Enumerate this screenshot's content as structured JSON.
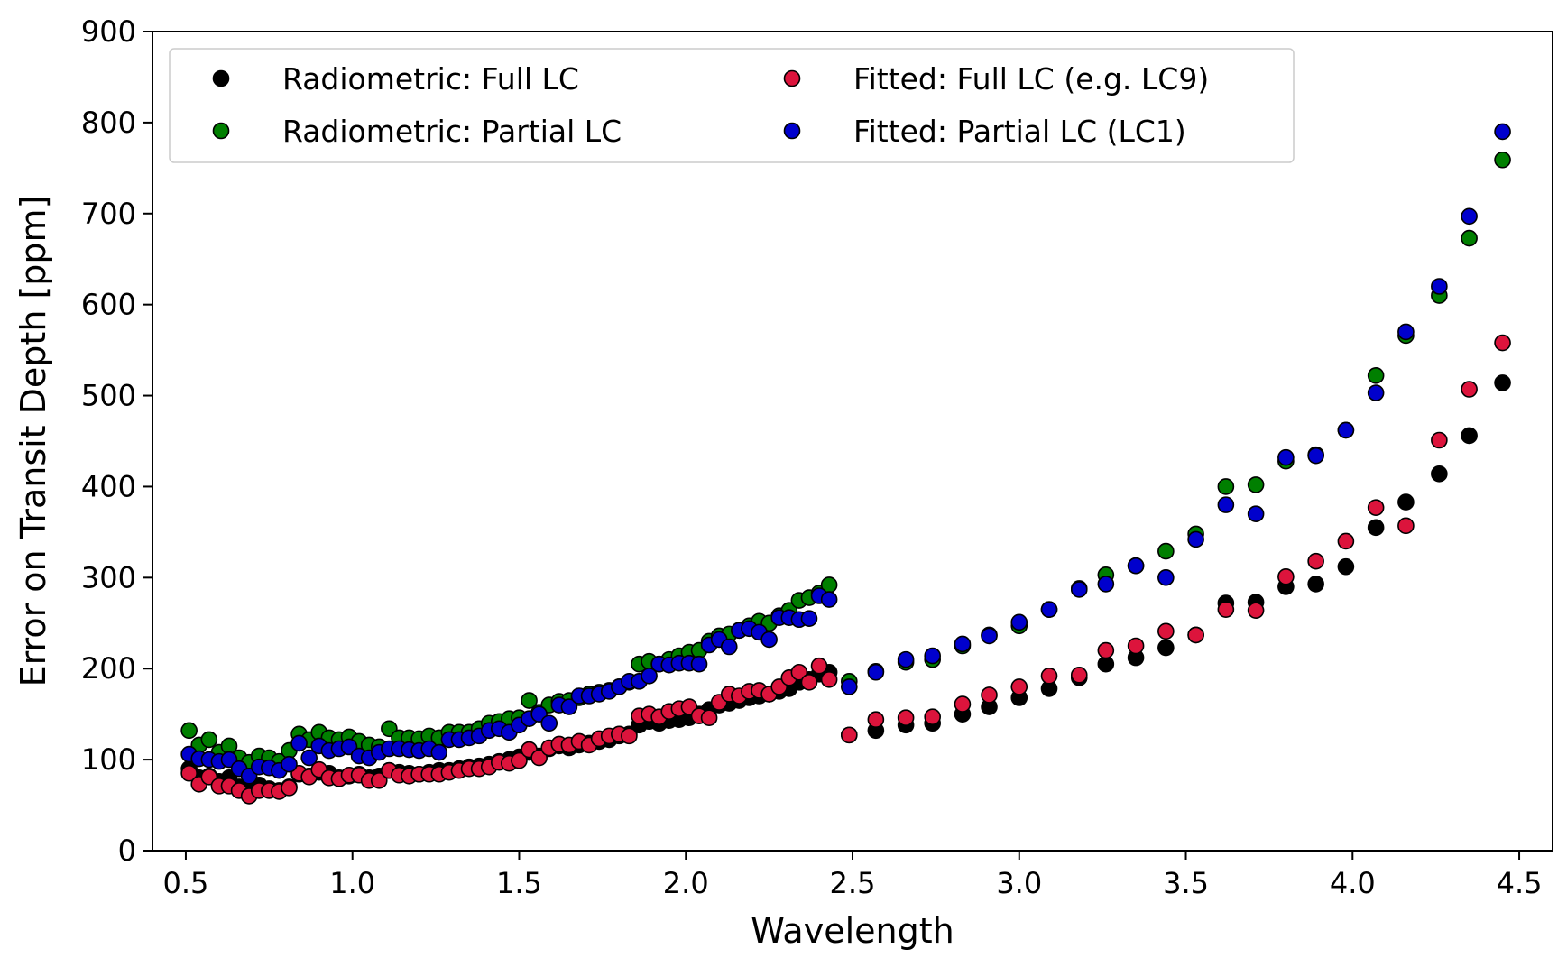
{
  "chart_data": {
    "type": "scatter",
    "title": "",
    "xlabel": "Wavelength",
    "ylabel": "Error on Transit Depth [ppm]",
    "xlim": [
      0.4,
      4.6
    ],
    "ylim": [
      0,
      900
    ],
    "xticks": [
      "0.5",
      "1.0",
      "1.5",
      "2.0",
      "2.5",
      "3.0",
      "3.5",
      "4.0",
      "4.5"
    ],
    "yticks": [
      "0",
      "100",
      "200",
      "300",
      "400",
      "500",
      "600",
      "700",
      "800",
      "900"
    ],
    "xtick_values": [
      0.5,
      1.0,
      1.5,
      2.0,
      2.5,
      3.0,
      3.5,
      4.0,
      4.5
    ],
    "ytick_values": [
      0,
      100,
      200,
      300,
      400,
      500,
      600,
      700,
      800,
      900
    ],
    "grid": false,
    "legend_position": "top-left",
    "series": [
      {
        "name": "Radiometric: Full LC",
        "color": "#000000",
        "x": [
          0.51,
          0.54,
          0.57,
          0.6,
          0.63,
          0.66,
          0.69,
          0.72,
          0.75,
          0.78,
          0.81,
          0.84,
          0.87,
          0.9,
          0.93,
          0.96,
          0.99,
          1.02,
          1.05,
          1.08,
          1.11,
          1.14,
          1.17,
          1.2,
          1.23,
          1.26,
          1.29,
          1.32,
          1.35,
          1.38,
          1.41,
          1.44,
          1.47,
          1.5,
          1.53,
          1.56,
          1.59,
          1.62,
          1.65,
          1.68,
          1.71,
          1.74,
          1.77,
          1.8,
          1.83,
          1.86,
          1.89,
          1.92,
          1.95,
          1.98,
          2.01,
          2.04,
          2.07,
          2.1,
          2.13,
          2.16,
          2.19,
          2.22,
          2.25,
          2.28,
          2.31,
          2.34,
          2.37,
          2.4,
          2.43,
          2.49,
          2.57,
          2.66,
          2.74,
          2.83,
          2.91,
          3.0,
          3.09,
          3.18,
          3.26,
          3.35,
          3.44,
          3.53,
          3.62,
          3.71,
          3.8,
          3.89,
          3.98,
          4.07,
          4.16,
          4.26,
          4.35,
          4.45
        ],
        "values": [
          90,
          80,
          82,
          76,
          80,
          70,
          65,
          72,
          68,
          66,
          70,
          84,
          82,
          86,
          85,
          80,
          82,
          84,
          80,
          82,
          88,
          86,
          85,
          84,
          86,
          88,
          88,
          90,
          92,
          93,
          95,
          98,
          100,
          103,
          108,
          104,
          112,
          115,
          113,
          116,
          118,
          120,
          122,
          126,
          128,
          138,
          142,
          140,
          143,
          144,
          146,
          150,
          155,
          160,
          162,
          165,
          168,
          170,
          172,
          175,
          178,
          185,
          188,
          194,
          196,
          127,
          132,
          138,
          140,
          150,
          158,
          168,
          178,
          190,
          205,
          212,
          223,
          237,
          272,
          273,
          290,
          293,
          312,
          355,
          383,
          414,
          456,
          514
        ]
      },
      {
        "name": "Radiometric: Partial LC",
        "color": "#007f00",
        "x": [
          0.51,
          0.54,
          0.57,
          0.6,
          0.63,
          0.66,
          0.69,
          0.72,
          0.75,
          0.78,
          0.81,
          0.84,
          0.87,
          0.9,
          0.93,
          0.96,
          0.99,
          1.02,
          1.05,
          1.08,
          1.11,
          1.14,
          1.17,
          1.2,
          1.23,
          1.26,
          1.29,
          1.32,
          1.35,
          1.38,
          1.41,
          1.44,
          1.47,
          1.5,
          1.53,
          1.56,
          1.59,
          1.62,
          1.65,
          1.68,
          1.71,
          1.74,
          1.77,
          1.8,
          1.83,
          1.86,
          1.89,
          1.92,
          1.95,
          1.98,
          2.01,
          2.04,
          2.07,
          2.1,
          2.13,
          2.16,
          2.19,
          2.22,
          2.25,
          2.28,
          2.31,
          2.34,
          2.37,
          2.4,
          2.43,
          2.49,
          2.57,
          2.66,
          2.74,
          2.83,
          2.91,
          3.0,
          3.09,
          3.18,
          3.26,
          3.35,
          3.44,
          3.53,
          3.62,
          3.71,
          3.8,
          3.89,
          3.98,
          4.07,
          4.16,
          4.26,
          4.35,
          4.45
        ],
        "values": [
          132,
          116,
          122,
          108,
          115,
          102,
          97,
          104,
          102,
          98,
          110,
          128,
          122,
          130,
          124,
          122,
          125,
          120,
          116,
          114,
          134,
          124,
          124,
          123,
          126,
          124,
          130,
          130,
          130,
          134,
          140,
          142,
          145,
          146,
          165,
          152,
          160,
          164,
          165,
          168,
          172,
          174,
          176,
          180,
          185,
          205,
          208,
          205,
          210,
          214,
          218,
          220,
          230,
          236,
          238,
          242,
          247,
          252,
          250,
          258,
          264,
          275,
          278,
          283,
          292,
          186,
          197,
          207,
          210,
          225,
          237,
          247,
          265,
          288,
          303,
          313,
          329,
          348,
          400,
          402,
          428,
          435,
          462,
          522,
          566,
          610,
          673,
          759
        ]
      },
      {
        "name": "Fitted: Full LC (e.g. LC9)",
        "color": "#dc143c",
        "x": [
          0.51,
          0.54,
          0.57,
          0.6,
          0.63,
          0.66,
          0.69,
          0.72,
          0.75,
          0.78,
          0.81,
          0.84,
          0.87,
          0.9,
          0.93,
          0.96,
          0.99,
          1.02,
          1.05,
          1.08,
          1.11,
          1.14,
          1.17,
          1.2,
          1.23,
          1.26,
          1.29,
          1.32,
          1.35,
          1.38,
          1.41,
          1.44,
          1.47,
          1.5,
          1.53,
          1.56,
          1.59,
          1.62,
          1.65,
          1.68,
          1.71,
          1.74,
          1.77,
          1.8,
          1.83,
          1.86,
          1.89,
          1.92,
          1.95,
          1.98,
          2.01,
          2.04,
          2.07,
          2.1,
          2.13,
          2.16,
          2.19,
          2.22,
          2.25,
          2.28,
          2.31,
          2.34,
          2.37,
          2.4,
          2.43,
          2.49,
          2.57,
          2.66,
          2.74,
          2.83,
          2.91,
          3.0,
          3.09,
          3.18,
          3.26,
          3.35,
          3.44,
          3.53,
          3.62,
          3.71,
          3.8,
          3.89,
          3.98,
          4.07,
          4.16,
          4.26,
          4.35,
          4.45
        ],
        "values": [
          85,
          73,
          81,
          71,
          71,
          66,
          60,
          66,
          66,
          65,
          69,
          85,
          81,
          89,
          80,
          79,
          83,
          83,
          77,
          77,
          88,
          83,
          82,
          84,
          84,
          84,
          86,
          88,
          90,
          90,
          92,
          97,
          96,
          99,
          111,
          102,
          113,
          117,
          116,
          120,
          116,
          123,
          126,
          128,
          126,
          148,
          150,
          147,
          153,
          156,
          158,
          148,
          146,
          163,
          172,
          170,
          175,
          176,
          172,
          180,
          190,
          196,
          185,
          203,
          188,
          127,
          144,
          146,
          147,
          161,
          171,
          180,
          192,
          193,
          220,
          225,
          241,
          237,
          265,
          264,
          301,
          318,
          340,
          377,
          357,
          451,
          507,
          558
        ]
      },
      {
        "name": "Fitted: Partial LC (LC1)",
        "color": "#0000cd",
        "x": [
          0.51,
          0.54,
          0.57,
          0.6,
          0.63,
          0.66,
          0.69,
          0.72,
          0.75,
          0.78,
          0.81,
          0.84,
          0.87,
          0.9,
          0.93,
          0.96,
          0.99,
          1.02,
          1.05,
          1.08,
          1.11,
          1.14,
          1.17,
          1.2,
          1.23,
          1.26,
          1.29,
          1.32,
          1.35,
          1.38,
          1.41,
          1.44,
          1.47,
          1.5,
          1.53,
          1.56,
          1.59,
          1.62,
          1.65,
          1.68,
          1.71,
          1.74,
          1.77,
          1.8,
          1.83,
          1.86,
          1.89,
          1.92,
          1.95,
          1.98,
          2.01,
          2.04,
          2.07,
          2.1,
          2.13,
          2.16,
          2.19,
          2.22,
          2.25,
          2.28,
          2.31,
          2.34,
          2.37,
          2.4,
          2.43,
          2.49,
          2.57,
          2.66,
          2.74,
          2.83,
          2.91,
          3.0,
          3.09,
          3.18,
          3.26,
          3.35,
          3.44,
          3.53,
          3.62,
          3.71,
          3.8,
          3.89,
          3.98,
          4.07,
          4.16,
          4.26,
          4.35,
          4.45
        ],
        "values": [
          106,
          101,
          100,
          98,
          100,
          90,
          82,
          92,
          91,
          88,
          95,
          118,
          102,
          115,
          110,
          112,
          114,
          104,
          102,
          108,
          112,
          112,
          111,
          110,
          112,
          108,
          122,
          122,
          124,
          126,
          132,
          134,
          130,
          138,
          145,
          150,
          140,
          160,
          158,
          170,
          170,
          172,
          175,
          180,
          186,
          186,
          192,
          205,
          204,
          206,
          206,
          205,
          226,
          232,
          224,
          242,
          244,
          240,
          232,
          256,
          256,
          254,
          255,
          280,
          276,
          180,
          196,
          210,
          214,
          227,
          236,
          251,
          265,
          287,
          293,
          313,
          300,
          342,
          380,
          370,
          432,
          434,
          462,
          503,
          570,
          620,
          697,
          790
        ]
      }
    ]
  }
}
